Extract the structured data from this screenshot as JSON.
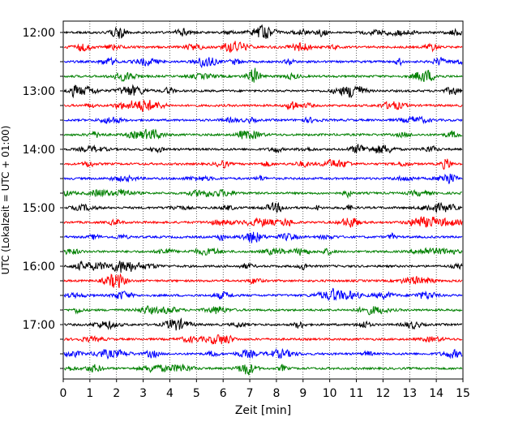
{
  "chart_data": {
    "type": "line",
    "title": "",
    "xlabel": "Zeit  [min]",
    "ylabel": "UTC (Lokalzeit = UTC + 01:00)",
    "xlim": [
      0,
      15
    ],
    "x_ticks": [
      0,
      1,
      2,
      3,
      4,
      5,
      6,
      7,
      8,
      9,
      10,
      11,
      12,
      13,
      14,
      15
    ],
    "x_tick_labels": [
      "0",
      "1",
      "2",
      "3",
      "4",
      "5",
      "6",
      "7",
      "8",
      "9",
      "10",
      "11",
      "12",
      "13",
      "14",
      "15"
    ],
    "y_tick_labels": [
      "12:00",
      "13:00",
      "14:00",
      "15:00",
      "16:00",
      "17:00"
    ],
    "trace_start_times": [
      "12:00",
      "12:15",
      "12:30",
      "12:45",
      "13:00",
      "13:15",
      "13:30",
      "13:45",
      "14:00",
      "14:15",
      "14:30",
      "14:45",
      "15:00",
      "15:15",
      "15:30",
      "15:45",
      "16:00",
      "16:15",
      "16:30",
      "16:45",
      "17:00",
      "17:15",
      "17:30",
      "17:45"
    ],
    "trace_colors": [
      "#000000",
      "#ff0000",
      "#0000ff",
      "#008000"
    ],
    "trace_duration_min": 15,
    "vertical_grid": true,
    "grid_style": "dotted"
  }
}
